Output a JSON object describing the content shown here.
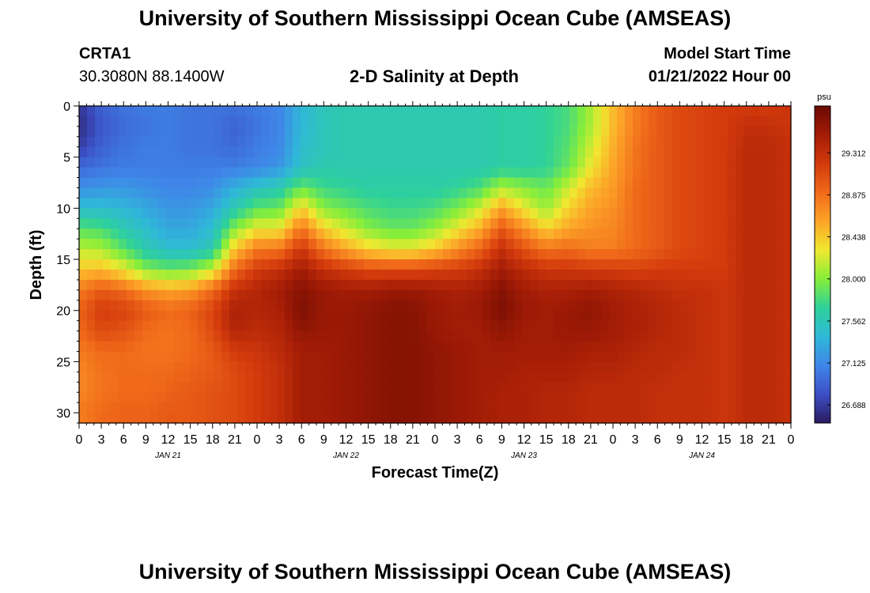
{
  "header": {
    "title": "University of Southern Mississippi Ocean Cube (AMSEAS)",
    "station": "CRTA1",
    "coords": "30.3080N  88.1400W",
    "subtitle": "2-D Salinity at Depth",
    "model_label": "Model Start Time",
    "model_time": "01/21/2022 Hour 00"
  },
  "footer": {
    "title": "University of Southern Mississippi Ocean Cube (AMSEAS)"
  },
  "chart_data": {
    "type": "heatmap",
    "title": "2-D Salinity at Depth",
    "xlabel": "Forecast Time(Z)",
    "ylabel": "Depth (ft)",
    "x_tick_labels": [
      "0",
      "3",
      "6",
      "9",
      "12",
      "15",
      "18",
      "21",
      "0",
      "3",
      "6",
      "9",
      "12",
      "15",
      "18",
      "21",
      "0",
      "3",
      "6",
      "9",
      "12",
      "15",
      "18",
      "21",
      "0",
      "3",
      "6",
      "9",
      "12",
      "15",
      "18",
      "21",
      "0"
    ],
    "x_hours": [
      0,
      96
    ],
    "x_day_labels": [
      {
        "hour": 12,
        "label": "JAN 21"
      },
      {
        "hour": 36,
        "label": "JAN 22"
      },
      {
        "hour": 60,
        "label": "JAN 23"
      },
      {
        "hour": 84,
        "label": "JAN 24"
      }
    ],
    "y_ticks": [
      0,
      5,
      10,
      15,
      20,
      25,
      30
    ],
    "ylim": [
      0,
      31
    ],
    "colorbar": {
      "unit": "psu",
      "min": 26.5,
      "max": 29.8,
      "tick_values": [
        29.312,
        28.875,
        28.438,
        28.0,
        27.562,
        27.125,
        26.688
      ],
      "tick_labels": [
        "29.312",
        "28.875",
        "28.438",
        "28.000",
        "27.562",
        "27.125",
        "26.688"
      ],
      "colors": [
        "#2a1a5e",
        "#3c4fc4",
        "#3f86e8",
        "#2fb8d8",
        "#2ed19a",
        "#86ee3a",
        "#f0e830",
        "#fda428",
        "#f06a1a",
        "#d33a0c",
        "#a31c06",
        "#6a0a02"
      ]
    },
    "times_hours": [
      0,
      3,
      6,
      9,
      12,
      15,
      18,
      21,
      24,
      27,
      30,
      33,
      36,
      39,
      42,
      45,
      48,
      51,
      54,
      57,
      60,
      63,
      66,
      69,
      72,
      75,
      78,
      81,
      84,
      87,
      90,
      93,
      96
    ],
    "depths_ft": [
      0,
      2,
      4,
      6,
      8,
      10,
      12,
      14,
      16,
      18,
      20,
      22,
      24,
      26,
      28,
      30
    ],
    "salinity_psu": [
      [
        26.65,
        26.9,
        27.0,
        27.05,
        27.05,
        27.0,
        27.0,
        27.0,
        27.05,
        27.1,
        27.4,
        27.55,
        27.6,
        27.6,
        27.6,
        27.6,
        27.6,
        27.6,
        27.6,
        27.65,
        27.65,
        27.7,
        27.8,
        28.1,
        28.5,
        28.8,
        29.0,
        29.1,
        29.15,
        29.2,
        29.2,
        29.2,
        29.25
      ],
      [
        26.6,
        26.85,
        26.95,
        27.0,
        27.05,
        27.0,
        27.0,
        26.9,
        27.0,
        27.1,
        27.4,
        27.55,
        27.6,
        27.6,
        27.6,
        27.6,
        27.6,
        27.6,
        27.6,
        27.65,
        27.65,
        27.7,
        27.8,
        28.1,
        28.5,
        28.8,
        29.0,
        29.1,
        29.15,
        29.2,
        29.3,
        29.3,
        29.25
      ],
      [
        26.7,
        26.9,
        27.0,
        27.05,
        27.05,
        27.0,
        27.0,
        26.95,
        27.05,
        27.1,
        27.45,
        27.55,
        27.6,
        27.6,
        27.6,
        27.6,
        27.6,
        27.6,
        27.6,
        27.65,
        27.65,
        27.7,
        27.85,
        28.2,
        28.55,
        28.85,
        29.0,
        29.1,
        29.15,
        29.2,
        29.35,
        29.35,
        29.3
      ],
      [
        26.95,
        27.0,
        27.05,
        27.05,
        27.05,
        27.05,
        27.05,
        27.05,
        27.1,
        27.2,
        27.5,
        27.6,
        27.6,
        27.6,
        27.6,
        27.6,
        27.6,
        27.6,
        27.6,
        27.65,
        27.65,
        27.7,
        27.9,
        28.3,
        28.6,
        28.85,
        29.0,
        29.1,
        29.15,
        29.2,
        29.35,
        29.35,
        29.3
      ],
      [
        27.15,
        27.2,
        27.2,
        27.15,
        27.1,
        27.1,
        27.15,
        27.35,
        27.5,
        27.6,
        27.9,
        27.75,
        27.7,
        27.65,
        27.65,
        27.65,
        27.65,
        27.7,
        27.8,
        28.1,
        28.0,
        27.9,
        28.2,
        28.5,
        28.65,
        28.9,
        29.0,
        29.1,
        29.15,
        29.2,
        29.35,
        29.35,
        29.3
      ],
      [
        27.45,
        27.45,
        27.4,
        27.3,
        27.2,
        27.2,
        27.3,
        27.6,
        27.85,
        27.9,
        28.4,
        28.0,
        27.9,
        27.8,
        27.75,
        27.75,
        27.8,
        27.95,
        28.2,
        28.6,
        28.3,
        28.05,
        28.4,
        28.6,
        28.7,
        28.9,
        29.0,
        29.1,
        29.15,
        29.2,
        29.35,
        29.35,
        29.3
      ],
      [
        27.85,
        27.8,
        27.6,
        27.45,
        27.3,
        27.3,
        27.45,
        28.0,
        28.3,
        28.3,
        28.85,
        28.4,
        28.2,
        28.0,
        27.9,
        27.9,
        28.05,
        28.3,
        28.55,
        29.0,
        28.7,
        28.4,
        28.6,
        28.7,
        28.75,
        28.9,
        29.0,
        29.1,
        29.15,
        29.2,
        29.35,
        29.35,
        29.3
      ],
      [
        28.15,
        28.1,
        27.85,
        27.6,
        27.45,
        27.45,
        27.6,
        28.45,
        28.8,
        28.85,
        29.25,
        28.85,
        28.6,
        28.4,
        28.3,
        28.3,
        28.45,
        28.7,
        28.95,
        29.3,
        29.05,
        28.85,
        28.9,
        28.8,
        28.8,
        28.9,
        29.0,
        29.1,
        29.15,
        29.2,
        29.35,
        29.35,
        29.3
      ],
      [
        28.45,
        28.5,
        28.3,
        28.0,
        27.9,
        27.95,
        28.2,
        28.9,
        29.2,
        29.3,
        29.5,
        29.3,
        29.2,
        29.1,
        29.1,
        29.1,
        29.15,
        29.2,
        29.3,
        29.5,
        29.35,
        29.25,
        29.25,
        29.2,
        29.2,
        29.15,
        29.2,
        29.2,
        29.2,
        29.2,
        29.35,
        29.35,
        29.3
      ],
      [
        28.8,
        29.0,
        28.9,
        28.7,
        28.6,
        28.65,
        28.9,
        29.3,
        29.4,
        29.5,
        29.65,
        29.55,
        29.5,
        29.5,
        29.55,
        29.55,
        29.5,
        29.45,
        29.5,
        29.65,
        29.5,
        29.45,
        29.45,
        29.5,
        29.45,
        29.4,
        29.35,
        29.3,
        29.3,
        29.25,
        29.35,
        29.35,
        29.3
      ],
      [
        28.95,
        29.2,
        29.15,
        29.0,
        28.9,
        28.95,
        29.15,
        29.45,
        29.4,
        29.45,
        29.7,
        29.55,
        29.55,
        29.6,
        29.65,
        29.65,
        29.55,
        29.5,
        29.55,
        29.7,
        29.55,
        29.5,
        29.55,
        29.6,
        29.5,
        29.45,
        29.4,
        29.35,
        29.3,
        29.25,
        29.35,
        29.35,
        29.3
      ],
      [
        28.9,
        29.1,
        29.05,
        28.9,
        28.85,
        28.9,
        29.1,
        29.4,
        29.35,
        29.4,
        29.6,
        29.55,
        29.55,
        29.6,
        29.65,
        29.65,
        29.55,
        29.5,
        29.5,
        29.6,
        29.5,
        29.5,
        29.55,
        29.55,
        29.5,
        29.45,
        29.4,
        29.35,
        29.3,
        29.25,
        29.35,
        29.35,
        29.3
      ],
      [
        28.8,
        28.9,
        28.9,
        28.85,
        28.85,
        28.9,
        29.0,
        29.2,
        29.25,
        29.35,
        29.5,
        29.5,
        29.55,
        29.6,
        29.65,
        29.65,
        29.6,
        29.55,
        29.5,
        29.5,
        29.5,
        29.5,
        29.5,
        29.45,
        29.45,
        29.4,
        29.35,
        29.35,
        29.3,
        29.25,
        29.35,
        29.35,
        29.3
      ],
      [
        28.75,
        28.85,
        28.9,
        28.9,
        28.9,
        28.95,
        29.0,
        29.1,
        29.2,
        29.3,
        29.5,
        29.5,
        29.55,
        29.6,
        29.65,
        29.65,
        29.6,
        29.55,
        29.5,
        29.5,
        29.45,
        29.45,
        29.45,
        29.4,
        29.4,
        29.35,
        29.35,
        29.3,
        29.3,
        29.25,
        29.35,
        29.35,
        29.3
      ],
      [
        28.75,
        28.85,
        28.9,
        28.9,
        28.95,
        29.0,
        29.05,
        29.1,
        29.2,
        29.3,
        29.5,
        29.5,
        29.55,
        29.6,
        29.65,
        29.65,
        29.6,
        29.55,
        29.5,
        29.45,
        29.45,
        29.4,
        29.4,
        29.35,
        29.35,
        29.35,
        29.3,
        29.3,
        29.3,
        29.25,
        29.35,
        29.35,
        29.3
      ],
      [
        28.8,
        28.9,
        28.95,
        28.95,
        29.0,
        29.0,
        29.05,
        29.1,
        29.2,
        29.3,
        29.5,
        29.5,
        29.55,
        29.6,
        29.65,
        29.65,
        29.6,
        29.55,
        29.5,
        29.45,
        29.45,
        29.4,
        29.4,
        29.35,
        29.35,
        29.35,
        29.3,
        29.3,
        29.3,
        29.25,
        29.35,
        29.35,
        29.3
      ]
    ]
  }
}
